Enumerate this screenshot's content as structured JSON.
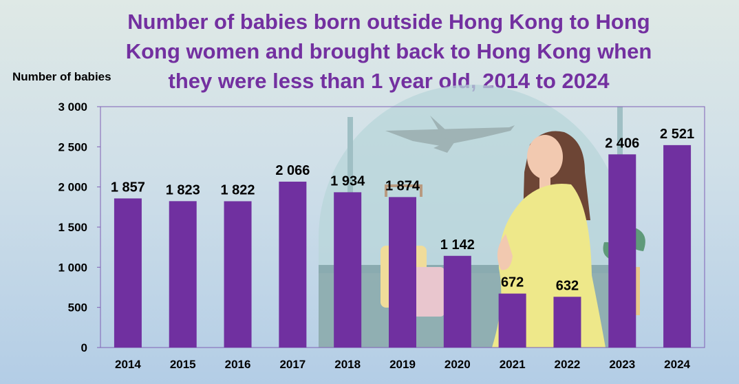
{
  "title": "Number of babies born outside Hong Kong to Hong Kong women and brought back to Hong Kong when they were less than 1 year old, 2014 to 2024",
  "colors": {
    "title": "#7330a0",
    "bar": "#7030a0",
    "frame": "#7f5fb4"
  },
  "chart_data": {
    "type": "bar",
    "title": "Number of babies born outside Hong Kong to Hong Kong women and brought back to Hong Kong when they were less than 1 year old, 2014 to 2024",
    "ylabel": "Number of babies",
    "xlabel": "",
    "categories": [
      "2014",
      "2015",
      "2016",
      "2017",
      "2018",
      "2019",
      "2020",
      "2021",
      "2022",
      "2023",
      "2024"
    ],
    "values": [
      1857,
      1823,
      1822,
      2066,
      1934,
      1874,
      1142,
      672,
      632,
      2406,
      2521
    ],
    "value_labels": [
      "1 857",
      "1 823",
      "1 822",
      "2 066",
      "1 934",
      "1 874",
      "1 142",
      "672",
      "632",
      "2 406",
      "2 521"
    ],
    "ylim": [
      0,
      3000
    ],
    "yticks": [
      0,
      500,
      1000,
      1500,
      2000,
      2500,
      3000
    ],
    "ytick_labels": [
      "0",
      "500",
      "1 000",
      "1 500",
      "2 000",
      "2 500",
      "3 000"
    ],
    "grid": false,
    "legend": "none"
  }
}
